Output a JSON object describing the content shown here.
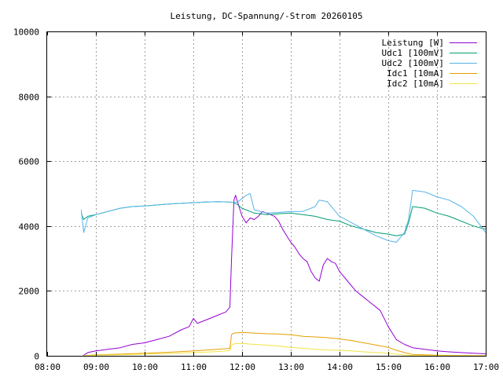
{
  "chart_data": {
    "type": "line",
    "title": "Leistung, DC-Spannung/-Strom 20260105",
    "xlabel": "",
    "ylabel": "",
    "xlim": [
      "08:00",
      "17:00"
    ],
    "ylim": [
      0,
      10000
    ],
    "x_ticks": [
      "08:00",
      "09:00",
      "10:00",
      "11:00",
      "12:00",
      "13:00",
      "14:00",
      "15:00",
      "16:00",
      "17:00"
    ],
    "y_ticks": [
      "0",
      "2000",
      "4000",
      "6000",
      "8000",
      "10000"
    ],
    "grid": true,
    "legend_position": "top-right",
    "series": [
      {
        "name": "Leistung [W]",
        "color": "#9400d3",
        "x": [
          "08:44",
          "08:50",
          "09:00",
          "09:15",
          "09:30",
          "09:45",
          "10:00",
          "10:15",
          "10:30",
          "10:45",
          "10:55",
          "11:00",
          "11:05",
          "11:15",
          "11:30",
          "11:40",
          "11:45",
          "11:47",
          "11:50",
          "11:52",
          "11:55",
          "12:00",
          "12:05",
          "12:10",
          "12:15",
          "12:20",
          "12:25",
          "12:30",
          "12:35",
          "12:40",
          "12:45",
          "12:50",
          "12:55",
          "13:00",
          "13:05",
          "13:10",
          "13:15",
          "13:20",
          "13:25",
          "13:30",
          "13:35",
          "13:40",
          "13:45",
          "13:50",
          "13:55",
          "14:00",
          "14:10",
          "14:20",
          "14:30",
          "14:40",
          "14:50",
          "15:00",
          "15:10",
          "15:20",
          "15:30",
          "15:45",
          "16:00",
          "16:15",
          "16:30",
          "16:45",
          "17:00"
        ],
        "y": [
          0,
          100,
          150,
          200,
          250,
          350,
          400,
          500,
          600,
          800,
          900,
          1150,
          1000,
          1100,
          1250,
          1350,
          1500,
          3000,
          4800,
          4950,
          4700,
          4300,
          4100,
          4250,
          4200,
          4300,
          4450,
          4400,
          4350,
          4300,
          4150,
          3900,
          3700,
          3500,
          3350,
          3150,
          3000,
          2900,
          2600,
          2400,
          2300,
          2800,
          3000,
          2900,
          2850,
          2600,
          2300,
          2000,
          1800,
          1600,
          1400,
          900,
          500,
          350,
          250,
          200,
          150,
          120,
          100,
          80,
          60
        ]
      },
      {
        "name": "Udc1 [100mV]",
        "color": "#009e73",
        "x": [
          "08:42",
          "08:45",
          "08:50",
          "09:00",
          "09:15",
          "09:30",
          "09:45",
          "10:00",
          "10:15",
          "10:30",
          "10:45",
          "11:00",
          "11:15",
          "11:30",
          "11:45",
          "11:50",
          "11:55",
          "12:00",
          "12:15",
          "12:30",
          "12:45",
          "13:00",
          "13:15",
          "13:30",
          "13:45",
          "14:00",
          "14:15",
          "14:30",
          "14:45",
          "15:00",
          "15:10",
          "15:20",
          "15:25",
          "15:30",
          "15:45",
          "16:00",
          "16:15",
          "16:30",
          "16:45",
          "17:00"
        ],
        "y": [
          4400,
          4200,
          4300,
          4350,
          4450,
          4550,
          4600,
          4620,
          4650,
          4680,
          4700,
          4720,
          4740,
          4750,
          4740,
          4720,
          4650,
          4550,
          4400,
          4350,
          4380,
          4400,
          4350,
          4300,
          4200,
          4150,
          4000,
          3900,
          3800,
          3750,
          3700,
          3750,
          4100,
          4600,
          4550,
          4400,
          4300,
          4150,
          4000,
          3900
        ]
      },
      {
        "name": "Udc2 [100mV]",
        "color": "#56b4e9",
        "x": [
          "08:42",
          "08:45",
          "08:50",
          "09:00",
          "09:15",
          "09:30",
          "09:45",
          "10:00",
          "10:15",
          "10:30",
          "10:45",
          "11:00",
          "11:15",
          "11:30",
          "11:45",
          "11:50",
          "11:55",
          "12:00",
          "12:05",
          "12:10",
          "12:15",
          "12:30",
          "12:45",
          "13:00",
          "13:15",
          "13:30",
          "13:35",
          "13:45",
          "14:00",
          "14:15",
          "14:30",
          "14:45",
          "15:00",
          "15:10",
          "15:20",
          "15:25",
          "15:30",
          "15:45",
          "16:00",
          "16:15",
          "16:30",
          "16:45",
          "17:00"
        ],
        "y": [
          4500,
          3800,
          4250,
          4350,
          4450,
          4550,
          4600,
          4620,
          4650,
          4680,
          4700,
          4720,
          4740,
          4750,
          4740,
          4720,
          4750,
          4850,
          4950,
          5000,
          4500,
          4400,
          4420,
          4450,
          4450,
          4600,
          4800,
          4750,
          4300,
          4100,
          3900,
          3700,
          3550,
          3500,
          3800,
          4200,
          5100,
          5050,
          4900,
          4800,
          4600,
          4300,
          3800
        ]
      },
      {
        "name": "Idc1 [10mA]",
        "color": "#e69f00",
        "x": [
          "08:44",
          "09:00",
          "09:30",
          "10:00",
          "10:30",
          "11:00",
          "11:30",
          "11:45",
          "11:47",
          "11:50",
          "12:00",
          "12:15",
          "12:30",
          "12:45",
          "13:00",
          "13:15",
          "13:30",
          "13:45",
          "14:00",
          "14:15",
          "14:30",
          "14:45",
          "15:00",
          "15:10",
          "15:20",
          "15:30",
          "16:00",
          "16:30",
          "17:00"
        ],
        "y": [
          0,
          30,
          50,
          80,
          110,
          150,
          200,
          230,
          650,
          700,
          720,
          700,
          680,
          670,
          650,
          600,
          580,
          560,
          520,
          470,
          400,
          330,
          260,
          170,
          100,
          40,
          20,
          10,
          5
        ]
      },
      {
        "name": "Idc2 [10mA]",
        "color": "#f0e442",
        "x": [
          "08:44",
          "09:00",
          "09:30",
          "10:00",
          "10:30",
          "11:00",
          "11:30",
          "11:45",
          "11:47",
          "11:50",
          "12:00",
          "12:15",
          "12:30",
          "12:45",
          "13:00",
          "13:15",
          "13:30",
          "13:45",
          "14:00",
          "14:15",
          "14:30",
          "14:45",
          "15:00",
          "15:10",
          "15:20",
          "15:30",
          "16:00",
          "16:30",
          "17:00"
        ],
        "y": [
          0,
          20,
          30,
          50,
          70,
          100,
          130,
          160,
          330,
          370,
          380,
          350,
          330,
          300,
          260,
          230,
          200,
          180,
          170,
          150,
          120,
          100,
          80,
          50,
          25,
          10,
          5,
          3,
          2
        ]
      }
    ]
  }
}
